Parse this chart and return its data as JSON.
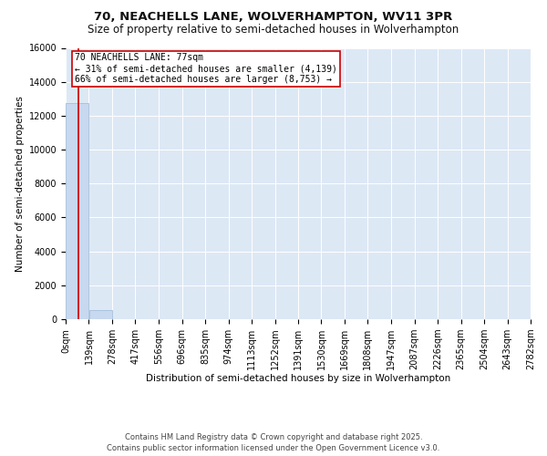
{
  "title": "70, NEACHELLS LANE, WOLVERHAMPTON, WV11 3PR",
  "subtitle": "Size of property relative to semi-detached houses in Wolverhampton",
  "xlabel": "Distribution of semi-detached houses by size in Wolverhampton",
  "ylabel": "Number of semi-detached properties",
  "footer": "Contains HM Land Registry data © Crown copyright and database right 2025.\nContains public sector information licensed under the Open Government Licence v3.0.",
  "annotation_title": "70 NEACHELLS LANE: 77sqm",
  "annotation_line1": "← 31% of semi-detached houses are smaller (4,139)",
  "annotation_line2": "66% of semi-detached houses are larger (8,753) →",
  "property_size": 77,
  "bar_edges": [
    0,
    139,
    278,
    417,
    556,
    696,
    835,
    974,
    1113,
    1252,
    1391,
    1530,
    1669,
    1808,
    1947,
    2087,
    2226,
    2365,
    2504,
    2643,
    2782
  ],
  "bar_values": [
    12750,
    530,
    0,
    0,
    0,
    0,
    0,
    0,
    0,
    0,
    0,
    0,
    0,
    0,
    0,
    0,
    0,
    0,
    0,
    0
  ],
  "bar_color": "#c8d8ee",
  "bar_edgecolor": "#99b8d8",
  "redline_color": "#cc0000",
  "annotation_box_color": "#cc0000",
  "background_color": "#dde8f5",
  "ylim": [
    0,
    16000
  ],
  "yticks": [
    0,
    2000,
    4000,
    6000,
    8000,
    10000,
    12000,
    14000,
    16000
  ],
  "title_fontsize": 9.5,
  "subtitle_fontsize": 8.5,
  "tick_fontsize": 7,
  "ylabel_fontsize": 7.5,
  "xlabel_fontsize": 7.5,
  "footer_fontsize": 6
}
